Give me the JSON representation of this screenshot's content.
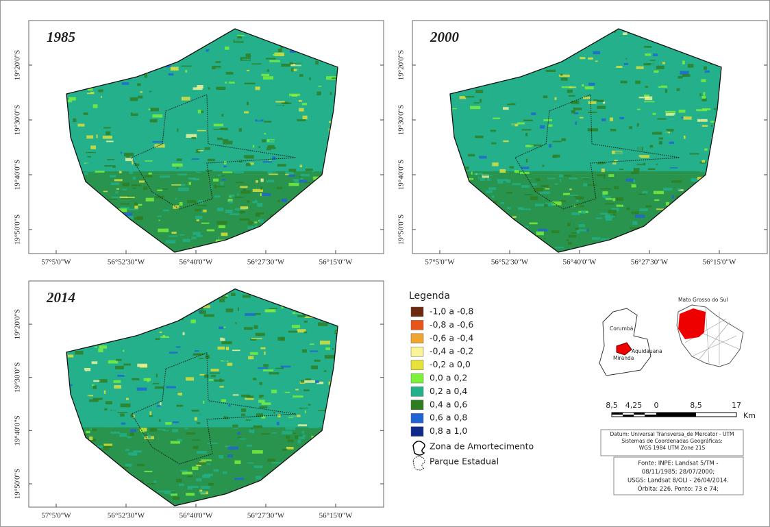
{
  "panels": [
    {
      "year": "1985"
    },
    {
      "year": "2000"
    },
    {
      "year": "2014"
    }
  ],
  "latitude_labels": [
    "19°20'0\"S",
    "19°30'0\"S",
    "19°40'0\"S",
    "19°50'0\"S"
  ],
  "longitude_labels": [
    "57°5'0\"W",
    "56°52'30\"W",
    "56°40'0\"W",
    "56°27'30\"W",
    "56°15'0\"W"
  ],
  "legend": {
    "title": "Legenda",
    "classes": [
      {
        "label": "-1,0 a -0,8",
        "color": "#6b2a0e"
      },
      {
        "label": "-0,8 a -0,6",
        "color": "#e8541a"
      },
      {
        "label": "-0,6 a -0,4",
        "color": "#f0a531"
      },
      {
        "label": "-0,4 a -0,2",
        "color": "#fbf59a"
      },
      {
        "label": "-0,2 a 0,0",
        "color": "#e6e23a"
      },
      {
        "label": "0,0 a 0,2",
        "color": "#7ef23b"
      },
      {
        "label": "0,2 a 0,4",
        "color": "#23b08a"
      },
      {
        "label": "0,4 a 0,6",
        "color": "#2e7d1e"
      },
      {
        "label": "0,6 a 0,8",
        "color": "#1f63d6"
      },
      {
        "label": "0,8 a 1,0",
        "color": "#0f2a8a"
      }
    ],
    "symbols": [
      "Zona de Amortecimento",
      "Parque Estadual"
    ]
  },
  "inset": {
    "labels": [
      "Corumbá",
      "Aquidauana",
      "Miranda",
      "Mato Grosso do Sul"
    ]
  },
  "scale_bar": {
    "labels": [
      "8,5",
      "4,25",
      "0",
      "8,5",
      "17"
    ],
    "unit": "Km"
  },
  "datum": [
    "Datum: Universal Transversa_de Mercator - UTM",
    "Sistemas de Coordenadas Geográficas:",
    "WGS 1984 UTM Zone 21S"
  ],
  "source": [
    "Fonte: INPE: Landsat 5/TM -",
    "08/11/1985; 28/07/2000;",
    "USGS: Landsat 8/OLI - 26/04/2014.",
    "Órbita: 226. Ponto: 73 e 74;"
  ]
}
